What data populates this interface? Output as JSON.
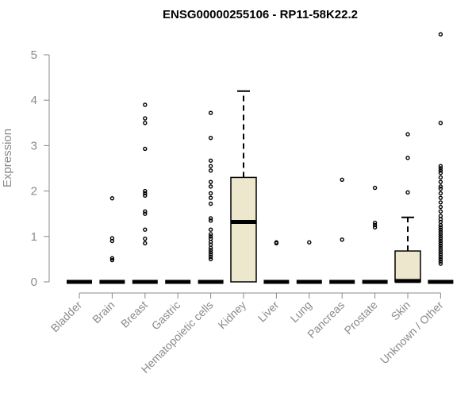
{
  "chart_data": {
    "type": "box",
    "title": "ENSG00000255106 - RP11-58K22.2",
    "ylabel": "Expression",
    "ylim": [
      0,
      5.5
    ],
    "yticks": [
      0,
      1,
      2,
      3,
      4,
      5
    ],
    "categories": [
      "Bladder",
      "Brain",
      "Breast",
      "Gastric",
      "Hematopoietic cells",
      "Kidney",
      "Liver",
      "Lung",
      "Pancreas",
      "Prostate",
      "Skin",
      "Unknown / Other"
    ],
    "boxes": [
      {
        "q1": 0,
        "median": 0,
        "q3": 0,
        "whisker_low": 0,
        "whisker_high": 0,
        "outliers": []
      },
      {
        "q1": 0,
        "median": 0,
        "q3": 0,
        "whisker_low": 0,
        "whisker_high": 0,
        "outliers": [
          1.84,
          0.96,
          0.9,
          0.52,
          0.48
        ]
      },
      {
        "q1": 0,
        "median": 0,
        "q3": 0,
        "whisker_low": 0,
        "whisker_high": 0,
        "outliers": [
          3.9,
          3.6,
          3.5,
          2.93,
          2.0,
          1.95,
          1.9,
          1.55,
          1.5,
          1.15,
          0.95,
          0.85
        ]
      },
      {
        "q1": 0,
        "median": 0,
        "q3": 0,
        "whisker_low": 0,
        "whisker_high": 0,
        "outliers": []
      },
      {
        "q1": 0,
        "median": 0,
        "q3": 0,
        "whisker_low": 0,
        "whisker_high": 0,
        "outliers": [
          3.72,
          3.17,
          2.67,
          2.55,
          2.45,
          2.2,
          2.1,
          1.95,
          1.85,
          1.72,
          1.4,
          1.35,
          1.15,
          1.05,
          1.0,
          0.95,
          0.88,
          0.82,
          0.75,
          0.7,
          0.65,
          0.6,
          0.55,
          0.5
        ]
      },
      {
        "q1": 0,
        "median": 1.32,
        "q3": 2.3,
        "whisker_low": 0,
        "whisker_high": 4.2,
        "outliers": []
      },
      {
        "q1": 0,
        "median": 0,
        "q3": 0,
        "whisker_low": 0,
        "whisker_high": 0,
        "outliers": [
          0.87,
          0.85
        ]
      },
      {
        "q1": 0,
        "median": 0,
        "q3": 0,
        "whisker_low": 0,
        "whisker_high": 0,
        "outliers": [
          0.87
        ]
      },
      {
        "q1": 0,
        "median": 0,
        "q3": 0,
        "whisker_low": 0,
        "whisker_high": 0,
        "outliers": [
          2.25,
          0.93
        ]
      },
      {
        "q1": 0,
        "median": 0,
        "q3": 0,
        "whisker_low": 0,
        "whisker_high": 0,
        "outliers": [
          2.07,
          1.3,
          1.25,
          1.2
        ]
      },
      {
        "q1": 0,
        "median": 0.02,
        "q3": 0.68,
        "whisker_low": 0,
        "whisker_high": 1.42,
        "outliers": [
          3.25,
          2.73,
          1.97
        ]
      },
      {
        "q1": 0,
        "median": 0,
        "q3": 0,
        "whisker_low": 0,
        "whisker_high": 0,
        "outliers": [
          5.45,
          3.5,
          2.55,
          2.5,
          2.45,
          2.4,
          2.3,
          2.2,
          2.1,
          2.05,
          1.95,
          1.85,
          1.75,
          1.65,
          1.55,
          1.45,
          1.38,
          1.32,
          1.25,
          1.2,
          1.15,
          1.1,
          1.05,
          1.0,
          0.95,
          0.9,
          0.85,
          0.8,
          0.75,
          0.7,
          0.65,
          0.6,
          0.55,
          0.5,
          0.45,
          0.4
        ]
      }
    ],
    "colors": {
      "box_fill": "#ede7cd",
      "axis": "#888888",
      "text": "#8a8a8a"
    },
    "grid": false,
    "legend": "none"
  }
}
